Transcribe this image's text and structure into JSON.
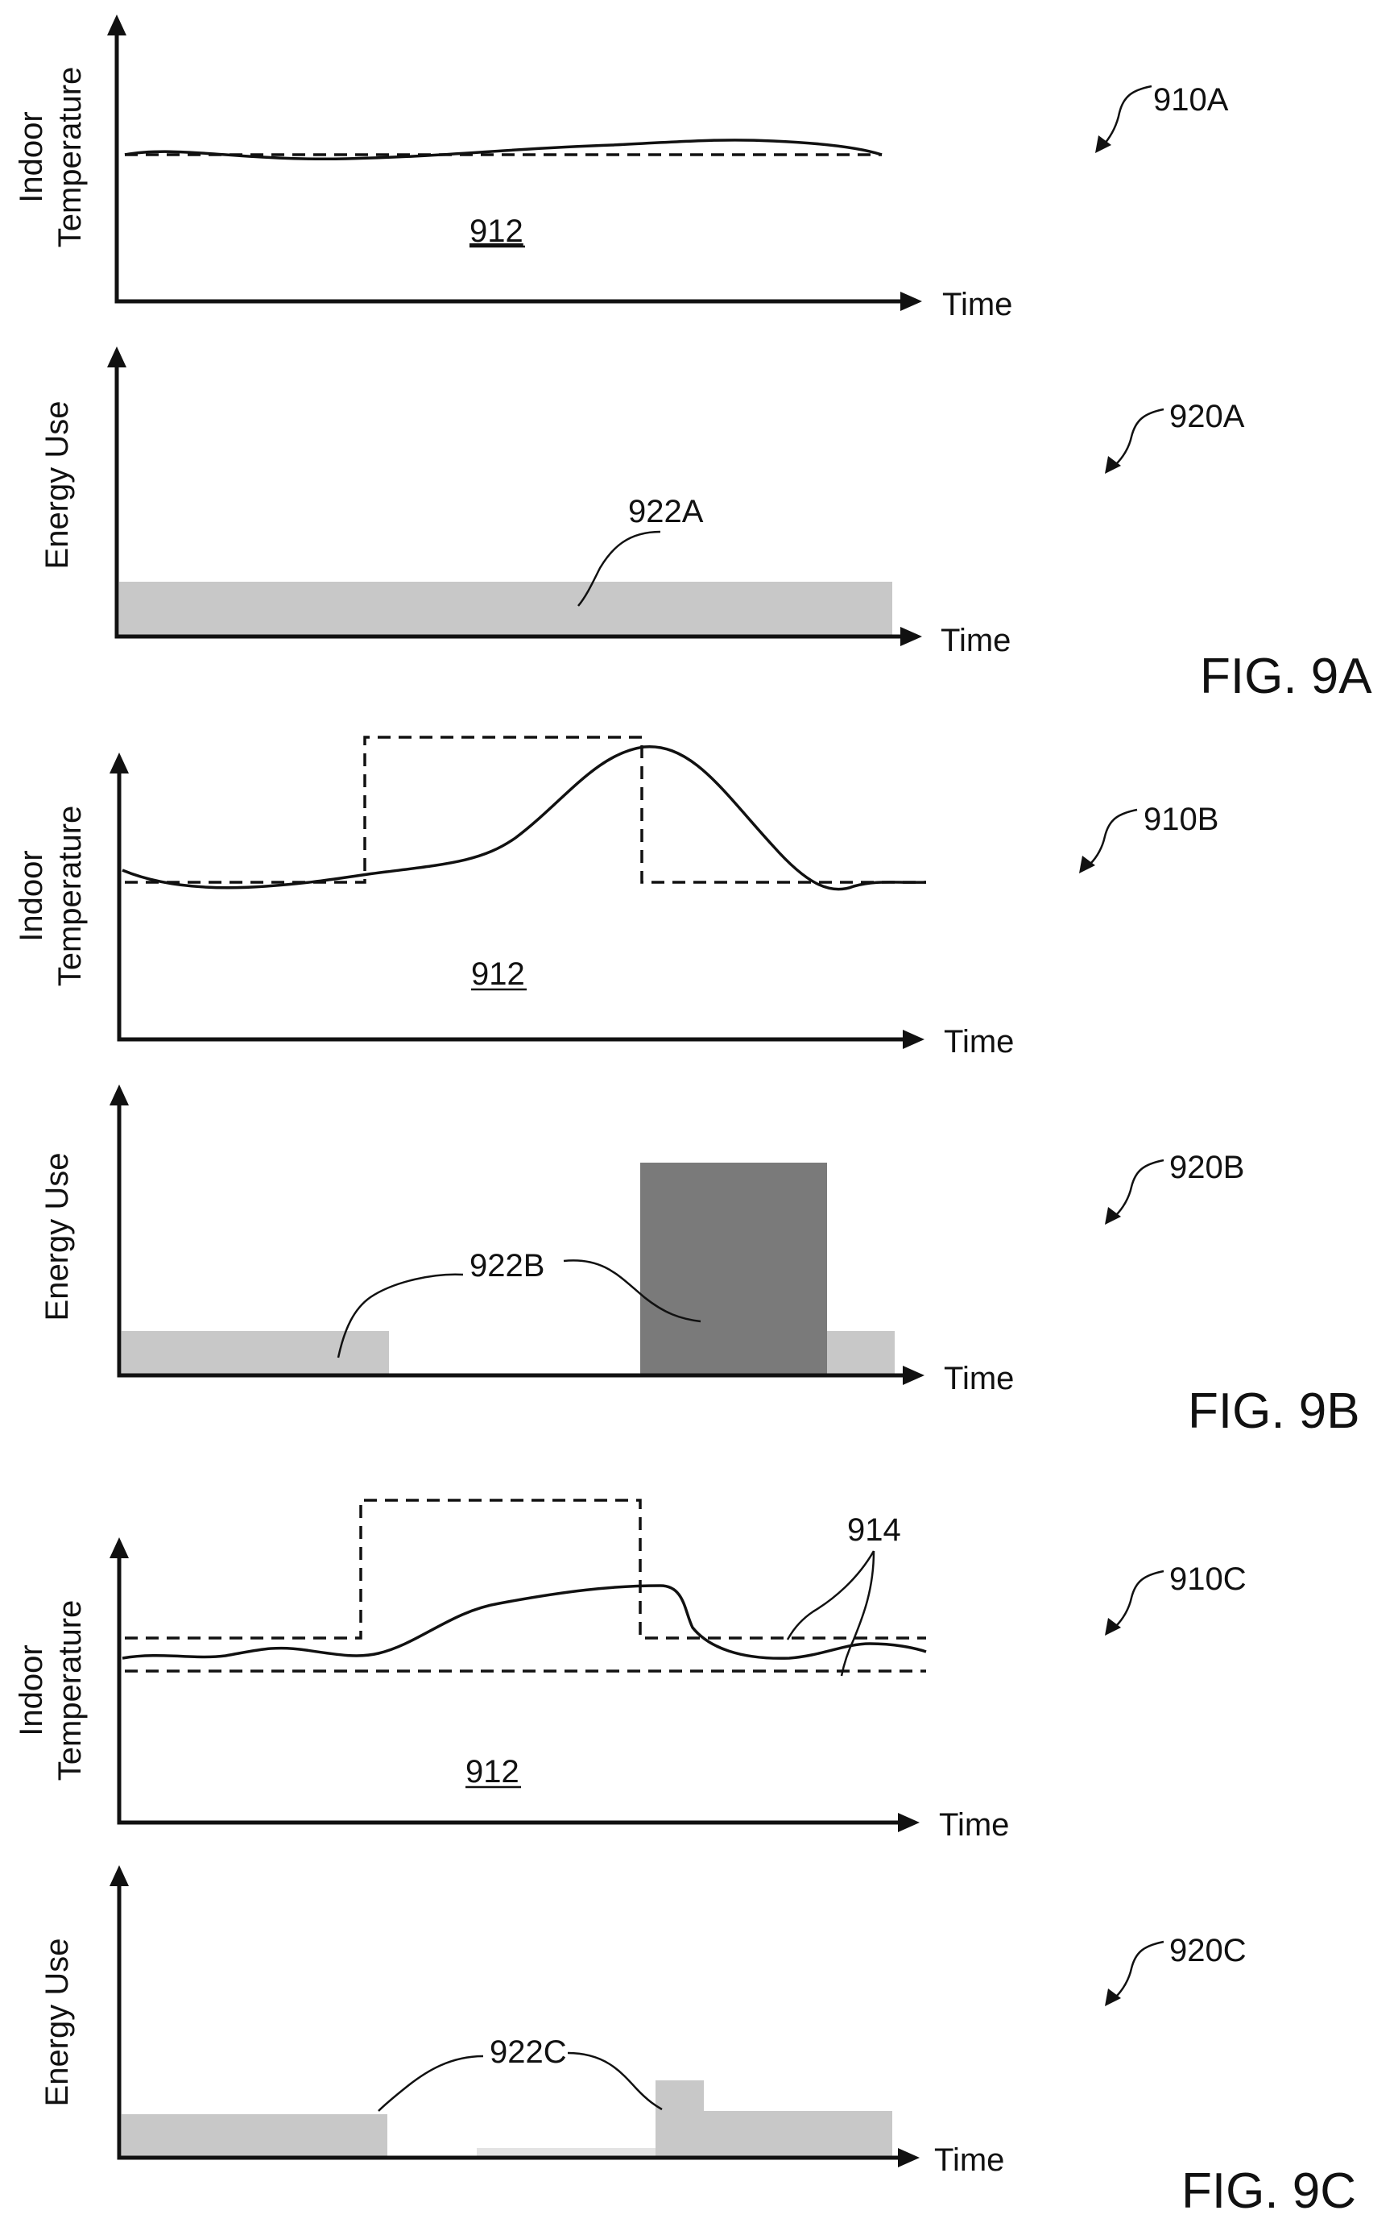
{
  "figures": {
    "fig9a": {
      "label": "FIG. 9A"
    },
    "fig9b": {
      "label": "FIG. 9B"
    },
    "fig9c": {
      "label": "FIG. 9C"
    }
  },
  "panels": {
    "p910a": {
      "ref": "910A",
      "ylabel_line1": "Indoor",
      "ylabel_line2": "Temperature",
      "xlabel": "Time",
      "region_label": "912"
    },
    "p920a": {
      "ref": "920A",
      "ylabel": "Energy Use",
      "xlabel": "Time",
      "bar_label": "922A"
    },
    "p910b": {
      "ref": "910B",
      "ylabel_line1": "Indoor",
      "ylabel_line2": "Temperature",
      "xlabel": "Time",
      "region_label": "912"
    },
    "p920b": {
      "ref": "920B",
      "ylabel": "Energy Use",
      "xlabel": "Time",
      "bar_label": "922B"
    },
    "p910c": {
      "ref": "910C",
      "ylabel_line1": "Indoor",
      "ylabel_line2": "Temperature",
      "xlabel": "Time",
      "region_label": "912",
      "band_label": "914"
    },
    "p920c": {
      "ref": "920C",
      "ylabel": "Energy Use",
      "xlabel": "Time",
      "bar_label": "922C"
    }
  },
  "colors": {
    "baseline_bar": "#c8c8c8",
    "peak_bar": "#7a7a7a",
    "faint_bar": "#e3e3e3"
  }
}
